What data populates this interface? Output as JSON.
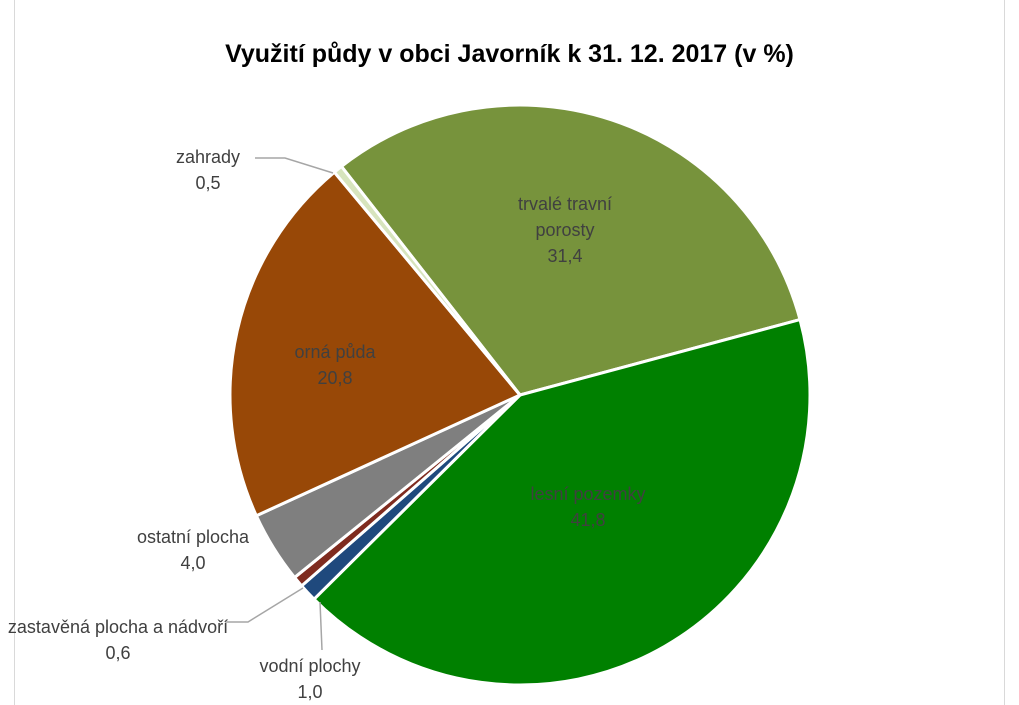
{
  "chart_data": {
    "type": "pie",
    "title": "Využití půdy v obci Javorník k 31. 12. 2017 (v %)",
    "categories": [
      "trvalé travní porosty",
      "lesní pozemky",
      "vodní plochy",
      "zastavěná plocha a nádvoří",
      "ostatní plocha",
      "orná půda",
      "zahrady"
    ],
    "values": [
      31.4,
      41.8,
      1.0,
      0.6,
      4.0,
      20.8,
      0.5
    ],
    "value_labels": [
      "31,4",
      "41,8",
      "1,0",
      "0,6",
      "4,0",
      "20,8",
      "0,5"
    ],
    "colors": [
      "#77933c",
      "#008000",
      "#1f497d",
      "#7f2b1f",
      "#7f7f7f",
      "#984807",
      "#d7e4bd"
    ]
  }
}
